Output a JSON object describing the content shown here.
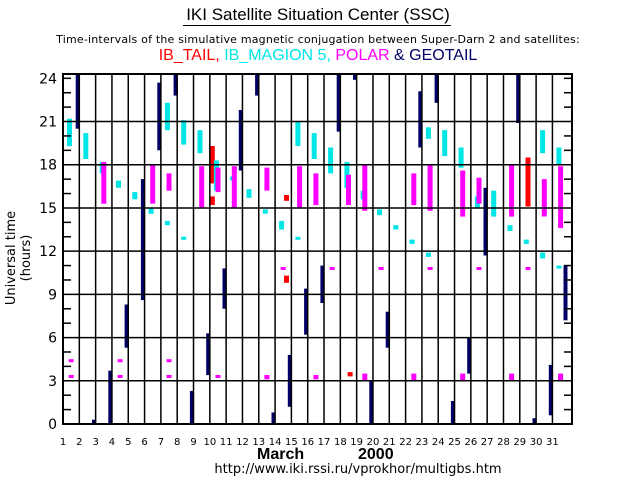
{
  "header": {
    "title": "IKI Satellite Situation Center (SSC)",
    "subtitle": "Time-intervals of the simulative magnetic conjugation between Super-Darn 2 and satellites:"
  },
  "legend": [
    {
      "label": "IB_TAIL,",
      "color": "#ff0000"
    },
    {
      "label": " IB_MAGION 5,",
      "color": "#00e5e5"
    },
    {
      "label": " POLAR",
      "color": "#ff00ff"
    },
    {
      "label": " & GEOTAIL",
      "color": "#000066"
    }
  ],
  "footer": {
    "month": "March",
    "year": "2000",
    "url": "http://www.iki.rssi.ru/vprokhor/multigbs.htm"
  },
  "chart_data": {
    "type": "bar",
    "title": "IKI Satellite Situation Center (SSC)",
    "xlabel": "March 2000",
    "ylabel": "Universal time (hours)",
    "xlim": [
      1,
      32.2
    ],
    "ylim": [
      0,
      24.3
    ],
    "xticks": [
      "1",
      "2",
      "3",
      "4",
      "5",
      "6",
      "7",
      "8",
      "9",
      "10",
      "11",
      "12",
      "13",
      "14",
      "15",
      "16",
      "17",
      "18",
      "19",
      "20",
      "21",
      "22",
      "23",
      "24",
      "25",
      "26",
      "27",
      "28",
      "29",
      "30",
      "31"
    ],
    "yticks": [
      "0",
      "3",
      "6",
      "9",
      "12",
      "15",
      "18",
      "21",
      "24"
    ],
    "grid": true,
    "series": [
      {
        "name": "IB_TAIL",
        "color": "#ff0000",
        "intervals": [
          {
            "day": 10.15,
            "start": 15.2,
            "end": 15.8
          },
          {
            "day": 10.15,
            "start": 16.7,
            "end": 19.3
          },
          {
            "day": 14.7,
            "start": 15.5,
            "end": 15.9
          },
          {
            "day": 14.7,
            "start": 9.8,
            "end": 10.3
          },
          {
            "day": 18.6,
            "start": 3.3,
            "end": 3.6
          },
          {
            "day": 29.5,
            "start": 15.1,
            "end": 18.5
          }
        ]
      },
      {
        "name": "IB_MAGION 5",
        "color": "#00e5e5",
        "intervals": [
          {
            "day": 1.4,
            "start": 19.3,
            "end": 21.2
          },
          {
            "day": 2.4,
            "start": 18.4,
            "end": 20.2
          },
          {
            "day": 3.4,
            "start": 17.4,
            "end": 18.2
          },
          {
            "day": 4.4,
            "start": 16.4,
            "end": 16.9
          },
          {
            "day": 5.4,
            "start": 15.6,
            "end": 16.1
          },
          {
            "day": 6.4,
            "start": 14.6,
            "end": 15.0
          },
          {
            "day": 7.4,
            "start": 20.4,
            "end": 22.3
          },
          {
            "day": 7.4,
            "start": 13.8,
            "end": 14.1
          },
          {
            "day": 8.4,
            "start": 19.4,
            "end": 21.1
          },
          {
            "day": 8.4,
            "start": 12.8,
            "end": 13.0
          },
          {
            "day": 9.4,
            "start": 18.8,
            "end": 20.4
          },
          {
            "day": 10.4,
            "start": 16.2,
            "end": 18.3
          },
          {
            "day": 11.4,
            "start": 16.9,
            "end": 17.2
          },
          {
            "day": 12.4,
            "start": 15.7,
            "end": 16.3
          },
          {
            "day": 13.4,
            "start": 14.6,
            "end": 14.9
          },
          {
            "day": 14.4,
            "start": 13.5,
            "end": 14.1
          },
          {
            "day": 15.4,
            "start": 19.3,
            "end": 21.0
          },
          {
            "day": 15.4,
            "start": 12.8,
            "end": 13.0
          },
          {
            "day": 16.4,
            "start": 18.4,
            "end": 20.2
          },
          {
            "day": 17.4,
            "start": 17.4,
            "end": 19.2
          },
          {
            "day": 18.4,
            "start": 16.4,
            "end": 18.2
          },
          {
            "day": 19.4,
            "start": 15.6,
            "end": 16.2
          },
          {
            "day": 20.4,
            "start": 14.5,
            "end": 14.9
          },
          {
            "day": 21.4,
            "start": 13.5,
            "end": 13.8
          },
          {
            "day": 22.4,
            "start": 12.5,
            "end": 12.8
          },
          {
            "day": 23.4,
            "start": 19.8,
            "end": 20.6
          },
          {
            "day": 23.4,
            "start": 11.6,
            "end": 11.9
          },
          {
            "day": 24.4,
            "start": 18.6,
            "end": 20.4
          },
          {
            "day": 25.4,
            "start": 17.8,
            "end": 19.2
          },
          {
            "day": 26.4,
            "start": 15.0,
            "end": 15.8
          },
          {
            "day": 27.4,
            "start": 14.4,
            "end": 16.2
          },
          {
            "day": 28.4,
            "start": 13.4,
            "end": 13.8
          },
          {
            "day": 29.4,
            "start": 12.5,
            "end": 12.8
          },
          {
            "day": 30.4,
            "start": 18.8,
            "end": 20.4
          },
          {
            "day": 30.4,
            "start": 11.5,
            "end": 11.9
          },
          {
            "day": 31.4,
            "start": 18.0,
            "end": 19.2
          },
          {
            "day": 31.4,
            "start": 10.9,
            "end": 11.0
          }
        ]
      },
      {
        "name": "POLAR",
        "color": "#ff00ff",
        "intervals": [
          {
            "day": 1.5,
            "start": 4.3,
            "end": 4.5
          },
          {
            "day": 1.5,
            "start": 3.2,
            "end": 3.4
          },
          {
            "day": 3.5,
            "start": 15.3,
            "end": 18.2
          },
          {
            "day": 4.5,
            "start": 4.3,
            "end": 4.5
          },
          {
            "day": 4.5,
            "start": 3.2,
            "end": 3.4
          },
          {
            "day": 6.5,
            "start": 15.3,
            "end": 18.0
          },
          {
            "day": 7.5,
            "start": 16.2,
            "end": 17.4
          },
          {
            "day": 7.5,
            "start": 4.3,
            "end": 4.5
          },
          {
            "day": 7.5,
            "start": 3.2,
            "end": 3.4
          },
          {
            "day": 9.5,
            "start": 15.0,
            "end": 17.9
          },
          {
            "day": 10.5,
            "start": 16.1,
            "end": 17.8
          },
          {
            "day": 10.5,
            "start": 3.2,
            "end": 3.4
          },
          {
            "day": 11.5,
            "start": 15.0,
            "end": 17.9
          },
          {
            "day": 13.5,
            "start": 16.2,
            "end": 17.8
          },
          {
            "day": 13.5,
            "start": 3.1,
            "end": 3.4
          },
          {
            "day": 14.5,
            "start": 10.7,
            "end": 10.9
          },
          {
            "day": 15.5,
            "start": 15.0,
            "end": 17.9
          },
          {
            "day": 16.5,
            "start": 15.2,
            "end": 17.4
          },
          {
            "day": 16.5,
            "start": 3.1,
            "end": 3.4
          },
          {
            "day": 17.5,
            "start": 10.7,
            "end": 10.9
          },
          {
            "day": 18.5,
            "start": 15.2,
            "end": 17.3
          },
          {
            "day": 19.5,
            "start": 14.8,
            "end": 18.0
          },
          {
            "day": 19.5,
            "start": 3.0,
            "end": 3.5
          },
          {
            "day": 20.5,
            "start": 10.7,
            "end": 10.9
          },
          {
            "day": 22.5,
            "start": 15.2,
            "end": 17.4
          },
          {
            "day": 22.5,
            "start": 3.0,
            "end": 3.5
          },
          {
            "day": 23.5,
            "start": 14.8,
            "end": 18.0
          },
          {
            "day": 23.5,
            "start": 10.7,
            "end": 10.9
          },
          {
            "day": 25.5,
            "start": 14.4,
            "end": 17.6
          },
          {
            "day": 25.5,
            "start": 3.0,
            "end": 3.5
          },
          {
            "day": 26.5,
            "start": 15.3,
            "end": 17.1
          },
          {
            "day": 26.5,
            "start": 10.7,
            "end": 10.9
          },
          {
            "day": 28.5,
            "start": 14.4,
            "end": 18.0
          },
          {
            "day": 28.5,
            "start": 3.0,
            "end": 3.5
          },
          {
            "day": 29.5,
            "start": 10.7,
            "end": 10.9
          },
          {
            "day": 30.5,
            "start": 14.4,
            "end": 17.0
          },
          {
            "day": 31.5,
            "start": 13.6,
            "end": 17.9
          },
          {
            "day": 31.5,
            "start": 3.0,
            "end": 3.5
          }
        ]
      },
      {
        "name": "GEOTAIL",
        "color": "#000066",
        "intervals": [
          {
            "day": 1.9,
            "start": 20.5,
            "end": 24.3
          },
          {
            "day": 2.9,
            "start": 0.0,
            "end": 0.3
          },
          {
            "day": 3.9,
            "start": 0.0,
            "end": 3.7
          },
          {
            "day": 4.9,
            "start": 5.3,
            "end": 8.3
          },
          {
            "day": 5.9,
            "start": 8.6,
            "end": 17.0
          },
          {
            "day": 6.9,
            "start": 19.0,
            "end": 23.7
          },
          {
            "day": 7.9,
            "start": 22.8,
            "end": 24.3
          },
          {
            "day": 8.9,
            "start": 0.0,
            "end": 2.3
          },
          {
            "day": 9.9,
            "start": 3.4,
            "end": 6.3
          },
          {
            "day": 10.9,
            "start": 8.0,
            "end": 10.8
          },
          {
            "day": 11.9,
            "start": 17.6,
            "end": 21.8
          },
          {
            "day": 12.9,
            "start": 22.8,
            "end": 24.3
          },
          {
            "day": 13.9,
            "start": 0.0,
            "end": 0.8
          },
          {
            "day": 14.9,
            "start": 1.2,
            "end": 4.8
          },
          {
            "day": 15.9,
            "start": 6.2,
            "end": 9.4
          },
          {
            "day": 16.9,
            "start": 8.4,
            "end": 11.0
          },
          {
            "day": 17.9,
            "start": 20.3,
            "end": 24.3
          },
          {
            "day": 18.9,
            "start": 23.9,
            "end": 24.3
          },
          {
            "day": 19.9,
            "start": 0.0,
            "end": 3.0
          },
          {
            "day": 20.9,
            "start": 5.3,
            "end": 7.8
          },
          {
            "day": 22.9,
            "start": 19.2,
            "end": 23.1
          },
          {
            "day": 23.9,
            "start": 22.3,
            "end": 24.3
          },
          {
            "day": 24.9,
            "start": 0.0,
            "end": 1.6
          },
          {
            "day": 25.9,
            "start": 3.5,
            "end": 6.0
          },
          {
            "day": 26.9,
            "start": 11.7,
            "end": 16.4
          },
          {
            "day": 28.9,
            "start": 20.9,
            "end": 24.3
          },
          {
            "day": 29.9,
            "start": 0.0,
            "end": 0.4
          },
          {
            "day": 30.9,
            "start": 0.6,
            "end": 4.1
          },
          {
            "day": 31.8,
            "start": 7.2,
            "end": 11.0
          }
        ]
      }
    ]
  }
}
